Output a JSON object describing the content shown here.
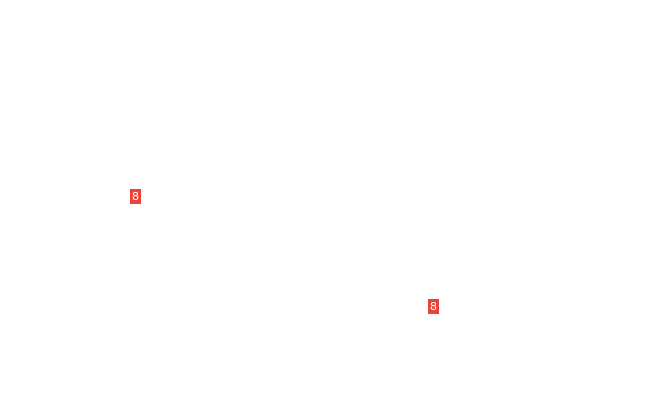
{
  "badge_color": "#e8443a",
  "badges": [
    {
      "label": "8"
    },
    {
      "label": "8"
    }
  ]
}
